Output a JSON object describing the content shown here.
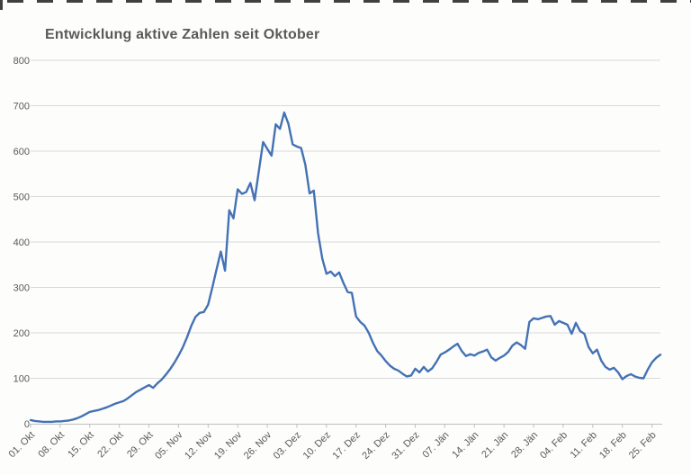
{
  "title": "Entwicklung aktive Zahlen seit Oktober",
  "colors": {
    "line": "#4472b4",
    "gridline": "#d9d9d9",
    "axis_line": "#bfbfbf",
    "label_text": "#595959",
    "title_text": "#595959",
    "background": "#fdfdfc"
  },
  "chart_data": {
    "type": "line",
    "title": "Entwicklung aktive Zahlen seit Oktober",
    "xlabel": "",
    "ylabel": "",
    "ylim": [
      0,
      800
    ],
    "y_ticks": [
      0,
      100,
      200,
      300,
      400,
      500,
      600,
      700,
      800
    ],
    "grid": "horizontal",
    "legend": "none",
    "x_unit": "day",
    "x_tick_every": 7,
    "x_tick_labels": [
      "01. Okt",
      "08. Okt",
      "15. Okt",
      "22. Okt",
      "29. Okt",
      "05. Nov",
      "12. Nov",
      "19. Nov",
      "26. Nov",
      "03. Dez",
      "10. Dez",
      "17. Dez",
      "24. Dez",
      "31. Dez",
      "07. Jän",
      "14. Jän",
      "21. Jän",
      "28. Jän",
      "04. Feb",
      "11. Feb",
      "18. Feb",
      "25. Feb"
    ],
    "series": [
      {
        "color": "#4472b4",
        "values": [
          8,
          6,
          5,
          4,
          4,
          4,
          5,
          5,
          6,
          7,
          9,
          12,
          16,
          21,
          26,
          28,
          30,
          33,
          36,
          40,
          44,
          47,
          50,
          56,
          63,
          70,
          75,
          80,
          85,
          79,
          89,
          97,
          108,
          120,
          134,
          150,
          168,
          190,
          215,
          235,
          244,
          246,
          262,
          300,
          340,
          379,
          337,
          470,
          452,
          516,
          506,
          510,
          530,
          492,
          556,
          620,
          605,
          590,
          659,
          649,
          685,
          660,
          615,
          610,
          607,
          570,
          507,
          513,
          420,
          364,
          330,
          335,
          325,
          333,
          310,
          290,
          288,
          236,
          224,
          216,
          200,
          178,
          160,
          150,
          138,
          128,
          121,
          117,
          110,
          104,
          106,
          121,
          113,
          125,
          115,
          122,
          136,
          152,
          157,
          163,
          170,
          176,
          160,
          149,
          153,
          150,
          156,
          159,
          163,
          146,
          139,
          145,
          150,
          158,
          172,
          179,
          173,
          165,
          224,
          232,
          230,
          233,
          236,
          237,
          218,
          226,
          222,
          218,
          198,
          222,
          204,
          198,
          169,
          155,
          163,
          139,
          125,
          119,
          123,
          113,
          98,
          105,
          109,
          104,
          101,
          100,
          119,
          135,
          145,
          152
        ]
      }
    ]
  }
}
